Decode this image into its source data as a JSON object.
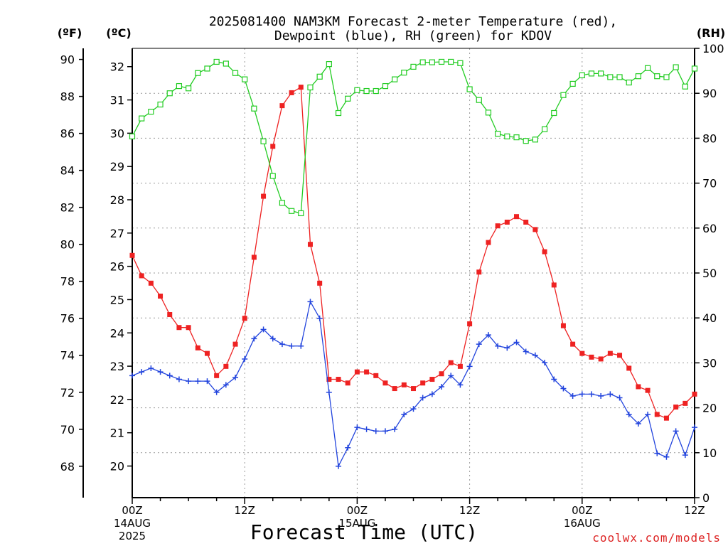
{
  "chart_data": {
    "type": "line",
    "title_line1": "2025081400 NAM3KM Forecast 2-meter Temperature (red),",
    "title_line2": "Dewpoint (blue), RH (green) for KDOV",
    "xlabel": "Forecast Time (UTC)",
    "watermark": "coolwx.com/models",
    "units": {
      "f": "(ºF)",
      "c": "(ºC)",
      "rh": "(RH)"
    },
    "x_ticks": [
      {
        "hour": 0,
        "lines": [
          "00Z",
          "14AUG",
          "2025"
        ]
      },
      {
        "hour": 12,
        "lines": [
          "12Z"
        ]
      },
      {
        "hour": 24,
        "lines": [
          "00Z",
          "15AUG"
        ]
      },
      {
        "hour": 36,
        "lines": [
          "12Z"
        ]
      },
      {
        "hour": 48,
        "lines": [
          "00Z",
          "16AUG"
        ]
      },
      {
        "hour": 60,
        "lines": [
          "12Z"
        ]
      }
    ],
    "xlim": [
      0,
      60
    ],
    "ylim_f": [
      66.3,
      90.6
    ],
    "ylim_c": [
      19.05,
      32.55
    ],
    "ylim_rh": [
      0,
      100
    ],
    "f_ticks": [
      68,
      70,
      72,
      74,
      76,
      78,
      80,
      82,
      84,
      86,
      88,
      90
    ],
    "c_ticks": [
      20,
      21,
      22,
      23,
      24,
      25,
      26,
      27,
      28,
      29,
      30,
      31,
      32
    ],
    "rh_ticks": [
      0,
      10,
      20,
      30,
      40,
      50,
      60,
      70,
      80,
      90,
      100
    ],
    "colors": {
      "temperature": "#ee2222",
      "dewpoint": "#2244dd",
      "rh": "#22cc22"
    },
    "series": [
      {
        "name": "Temperature",
        "units": "F",
        "values": [
          [
            0,
            79.4
          ],
          [
            1,
            78.3
          ],
          [
            2,
            77.9
          ],
          [
            3,
            77.2
          ],
          [
            4,
            76.2
          ],
          [
            5,
            75.5
          ],
          [
            6,
            75.5
          ],
          [
            7,
            74.4
          ],
          [
            8,
            74.1
          ],
          [
            9,
            72.9
          ],
          [
            10,
            73.4
          ],
          [
            11,
            74.6
          ],
          [
            12,
            76.0
          ],
          [
            13,
            79.3
          ],
          [
            14,
            82.6
          ],
          [
            15,
            85.3
          ],
          [
            16,
            87.5
          ],
          [
            17,
            88.2
          ],
          [
            18,
            88.5
          ],
          [
            19,
            80.0
          ],
          [
            20,
            77.9
          ],
          [
            21,
            72.7
          ],
          [
            22,
            72.7
          ],
          [
            23,
            72.5
          ],
          [
            24,
            73.1
          ],
          [
            25,
            73.1
          ],
          [
            26,
            72.9
          ],
          [
            27,
            72.5
          ],
          [
            28,
            72.2
          ],
          [
            29,
            72.4
          ],
          [
            30,
            72.2
          ],
          [
            31,
            72.5
          ],
          [
            32,
            72.7
          ],
          [
            33,
            73.0
          ],
          [
            34,
            73.6
          ],
          [
            35,
            73.4
          ],
          [
            36,
            75.7
          ],
          [
            37,
            78.5
          ],
          [
            38,
            80.1
          ],
          [
            39,
            81.0
          ],
          [
            40,
            81.2
          ],
          [
            41,
            81.5
          ],
          [
            42,
            81.2
          ],
          [
            43,
            80.8
          ],
          [
            44,
            79.6
          ],
          [
            45,
            77.8
          ],
          [
            46,
            75.6
          ],
          [
            47,
            74.6
          ],
          [
            48,
            74.1
          ],
          [
            49,
            73.9
          ],
          [
            50,
            73.8
          ],
          [
            51,
            74.1
          ],
          [
            52,
            74.0
          ],
          [
            53,
            73.3
          ],
          [
            54,
            72.3
          ],
          [
            55,
            72.1
          ],
          [
            56,
            70.8
          ],
          [
            57,
            70.6
          ],
          [
            58,
            71.2
          ],
          [
            59,
            71.4
          ],
          [
            60,
            71.9
          ]
        ]
      },
      {
        "name": "Dewpoint",
        "units": "F",
        "values": [
          [
            0,
            72.9
          ],
          [
            1,
            73.1
          ],
          [
            2,
            73.3
          ],
          [
            3,
            73.1
          ],
          [
            4,
            72.9
          ],
          [
            5,
            72.7
          ],
          [
            6,
            72.6
          ],
          [
            7,
            72.6
          ],
          [
            8,
            72.6
          ],
          [
            9,
            72.0
          ],
          [
            10,
            72.4
          ],
          [
            11,
            72.8
          ],
          [
            12,
            73.8
          ],
          [
            13,
            74.9
          ],
          [
            14,
            75.4
          ],
          [
            15,
            74.9
          ],
          [
            16,
            74.6
          ],
          [
            17,
            74.5
          ],
          [
            18,
            74.5
          ],
          [
            19,
            76.9
          ],
          [
            20,
            76.0
          ],
          [
            21,
            72.0
          ],
          [
            22,
            68.0
          ],
          [
            23,
            69.0
          ],
          [
            24,
            70.1
          ],
          [
            25,
            70.0
          ],
          [
            26,
            69.9
          ],
          [
            27,
            69.9
          ],
          [
            28,
            70.0
          ],
          [
            29,
            70.8
          ],
          [
            30,
            71.1
          ],
          [
            31,
            71.7
          ],
          [
            32,
            71.9
          ],
          [
            33,
            72.3
          ],
          [
            34,
            72.9
          ],
          [
            35,
            72.4
          ],
          [
            36,
            73.4
          ],
          [
            37,
            74.6
          ],
          [
            38,
            75.1
          ],
          [
            39,
            74.5
          ],
          [
            40,
            74.4
          ],
          [
            41,
            74.7
          ],
          [
            42,
            74.2
          ],
          [
            43,
            74.0
          ],
          [
            44,
            73.6
          ],
          [
            45,
            72.7
          ],
          [
            46,
            72.2
          ],
          [
            47,
            71.8
          ],
          [
            48,
            71.9
          ],
          [
            49,
            71.9
          ],
          [
            50,
            71.8
          ],
          [
            51,
            71.9
          ],
          [
            52,
            71.7
          ],
          [
            53,
            70.8
          ],
          [
            54,
            70.3
          ],
          [
            55,
            70.8
          ],
          [
            56,
            68.7
          ],
          [
            57,
            68.5
          ],
          [
            58,
            69.9
          ],
          [
            59,
            68.6
          ],
          [
            60,
            70.1
          ]
        ]
      },
      {
        "name": "RH",
        "units": "%",
        "values": [
          [
            0,
            80.4
          ],
          [
            1,
            84.4
          ],
          [
            2,
            85.9
          ],
          [
            3,
            87.5
          ],
          [
            4,
            90.0
          ],
          [
            5,
            91.6
          ],
          [
            6,
            91.1
          ],
          [
            7,
            94.5
          ],
          [
            8,
            95.5
          ],
          [
            9,
            97.0
          ],
          [
            10,
            96.6
          ],
          [
            11,
            94.5
          ],
          [
            12,
            93.1
          ],
          [
            13,
            86.6
          ],
          [
            14,
            79.3
          ],
          [
            15,
            71.6
          ],
          [
            16,
            65.6
          ],
          [
            17,
            63.8
          ],
          [
            18,
            63.3
          ],
          [
            19,
            91.3
          ],
          [
            20,
            93.7
          ],
          [
            21,
            96.5
          ],
          [
            22,
            85.6
          ],
          [
            23,
            88.8
          ],
          [
            24,
            90.7
          ],
          [
            25,
            90.5
          ],
          [
            26,
            90.5
          ],
          [
            27,
            91.6
          ],
          [
            28,
            93.1
          ],
          [
            29,
            94.6
          ],
          [
            30,
            95.9
          ],
          [
            31,
            96.9
          ],
          [
            32,
            96.9
          ],
          [
            33,
            97.0
          ],
          [
            34,
            97.0
          ],
          [
            35,
            96.7
          ],
          [
            36,
            90.9
          ],
          [
            37,
            88.5
          ],
          [
            38,
            85.7
          ],
          [
            39,
            81.0
          ],
          [
            40,
            80.4
          ],
          [
            41,
            80.2
          ],
          [
            42,
            79.4
          ],
          [
            43,
            79.7
          ],
          [
            44,
            82.0
          ],
          [
            45,
            85.6
          ],
          [
            46,
            89.6
          ],
          [
            47,
            92.1
          ],
          [
            48,
            94.0
          ],
          [
            49,
            94.4
          ],
          [
            50,
            94.4
          ],
          [
            51,
            93.6
          ],
          [
            52,
            93.6
          ],
          [
            53,
            92.4
          ],
          [
            54,
            93.8
          ],
          [
            55,
            95.6
          ],
          [
            56,
            93.8
          ],
          [
            57,
            93.6
          ],
          [
            58,
            95.8
          ],
          [
            59,
            91.5
          ],
          [
            60,
            95.5
          ]
        ]
      }
    ]
  }
}
